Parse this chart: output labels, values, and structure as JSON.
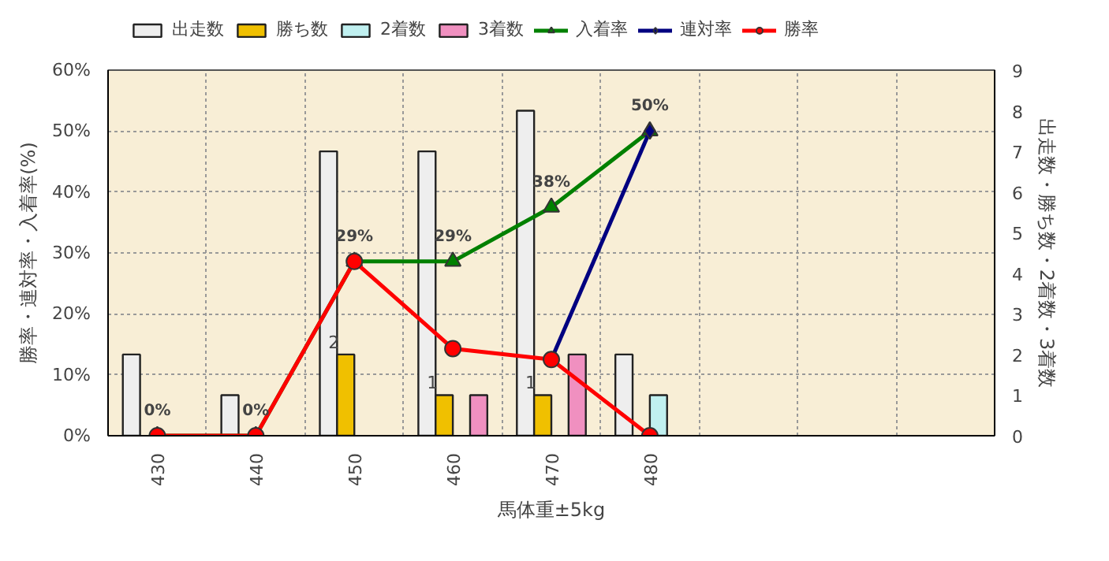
{
  "chart_data": {
    "type": "bar",
    "categories": [
      "430",
      "440",
      "450",
      "460",
      "470",
      "480",
      null,
      null,
      null
    ],
    "xlabel": "馬体重±5kg",
    "ylabel": "勝率・連対率・入着率(%)",
    "y2label": "出走数・勝ち数・2着数・3着数",
    "ylim": [
      0,
      60
    ],
    "yticks": [
      {
        "value": 0,
        "label": "0%"
      },
      {
        "value": 10,
        "label": "10%"
      },
      {
        "value": 20,
        "label": "20%"
      },
      {
        "value": 30,
        "label": "30%"
      },
      {
        "value": 40,
        "label": "40%"
      },
      {
        "value": 50,
        "label": "50%"
      },
      {
        "value": 60,
        "label": "60%"
      }
    ],
    "y2lim": [
      0,
      9
    ],
    "y2ticks": [
      0,
      1,
      2,
      3,
      4,
      5,
      6,
      7,
      8,
      9
    ],
    "grid": true,
    "legend": "top",
    "series": [
      {
        "name": "出走数",
        "axis": "y2",
        "color": "#eeeeee",
        "values": [
          2,
          1,
          7,
          7,
          8,
          2,
          null,
          null,
          null
        ]
      },
      {
        "name": "勝ち数",
        "axis": "y2",
        "color": "#f0c000",
        "values": [
          null,
          null,
          2,
          1,
          1,
          null,
          null,
          null,
          null
        ],
        "value_labels": [
          null,
          null,
          "2",
          "1",
          "1",
          null,
          null,
          null,
          null
        ]
      },
      {
        "name": "2着数",
        "axis": "y2",
        "color": "#c0f0f0",
        "values": [
          null,
          null,
          null,
          null,
          null,
          1,
          null,
          null,
          null
        ]
      },
      {
        "name": "3着数",
        "axis": "y2",
        "color": "#f090c0",
        "values": [
          null,
          null,
          null,
          1,
          2,
          null,
          null,
          null,
          null
        ]
      },
      {
        "name": "入着率",
        "type": "line",
        "marker": "triangle",
        "color": "#008000",
        "values": [
          0,
          0,
          28.6,
          28.6,
          37.5,
          50,
          null,
          null,
          null
        ],
        "value_labels": [
          "0%",
          "0%",
          "29%",
          "29%",
          "38%",
          "50%",
          null,
          null,
          null
        ]
      },
      {
        "name": "連対率",
        "type": "line",
        "marker": "diamond",
        "color": "#000080",
        "values": [
          null,
          null,
          null,
          null,
          12.5,
          50,
          null,
          null,
          null
        ]
      },
      {
        "name": "勝率",
        "type": "line",
        "marker": "circle",
        "color": "#ff0000",
        "values": [
          0,
          0,
          28.6,
          14.3,
          12.5,
          0,
          null,
          null,
          null
        ]
      }
    ]
  }
}
